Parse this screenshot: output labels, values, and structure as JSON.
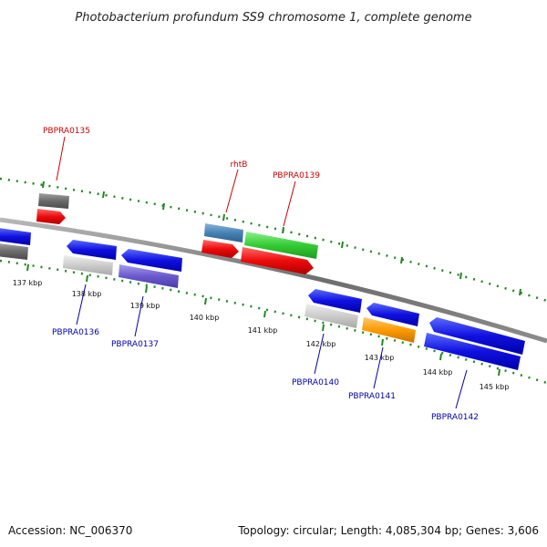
{
  "title": "Photobacterium profundum SS9 chromosome 1, complete genome",
  "footer": {
    "accession": "Accession: NC_006370",
    "summary": "Topology: circular; Length: 4,085,304 bp; Genes: 3,606"
  },
  "colors": {
    "backbone": "#7a7a7a",
    "tick": "#228822",
    "top_label": "#cc0000",
    "bottom_label": "#0000aa"
  },
  "scale_labels": [
    "137 kbp",
    "138 kbp",
    "139 kbp",
    "140 kbp",
    "141 kbp",
    "142 kbp",
    "143 kbp",
    "144 kbp",
    "145 kbp"
  ],
  "gene_labels_top": [
    "PBPRA0135",
    "rhtB",
    "PBPRA0139"
  ],
  "gene_labels_bottom": [
    "PBPRA0136",
    "PBPRA0137",
    "PBPRA0140",
    "PBPRA0141",
    "PBPRA0142"
  ]
}
